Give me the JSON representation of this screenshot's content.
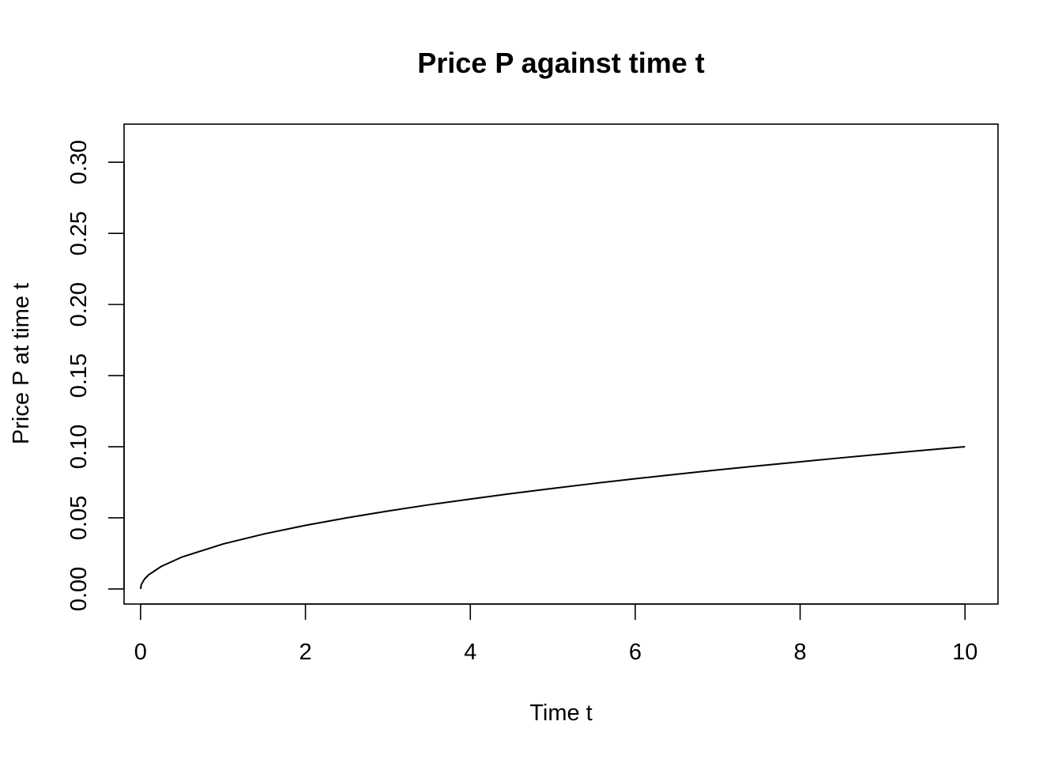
{
  "chart_data": {
    "type": "line",
    "title": "Price P against time t",
    "xlabel": "Time t",
    "ylabel": "Price P at time t",
    "xlim": [
      -0.2,
      10.4
    ],
    "ylim": [
      -0.0106,
      0.3268
    ],
    "xticks": [
      "0",
      "2",
      "4",
      "6",
      "8",
      "10"
    ],
    "yticks": [
      "0.00",
      "0.05",
      "0.10",
      "0.15",
      "0.20",
      "0.25",
      "0.30"
    ],
    "grid": false,
    "legend": "none",
    "line_color": "#000000",
    "series": [
      {
        "x": [
          0,
          0.01,
          0.05,
          0.1,
          0.25,
          0.5,
          1,
          1.5,
          2,
          2.5,
          3,
          3.5,
          4,
          4.5,
          5,
          5.5,
          6,
          6.5,
          7,
          7.5,
          8,
          8.5,
          9,
          9.5,
          10
        ],
        "values": [
          0.0,
          0.0032,
          0.0071,
          0.01,
          0.0158,
          0.0224,
          0.0316,
          0.0387,
          0.0447,
          0.05,
          0.0548,
          0.0592,
          0.0632,
          0.0671,
          0.0707,
          0.0742,
          0.0775,
          0.0806,
          0.0837,
          0.0866,
          0.0894,
          0.0922,
          0.0949,
          0.0975,
          0.1
        ]
      }
    ]
  }
}
